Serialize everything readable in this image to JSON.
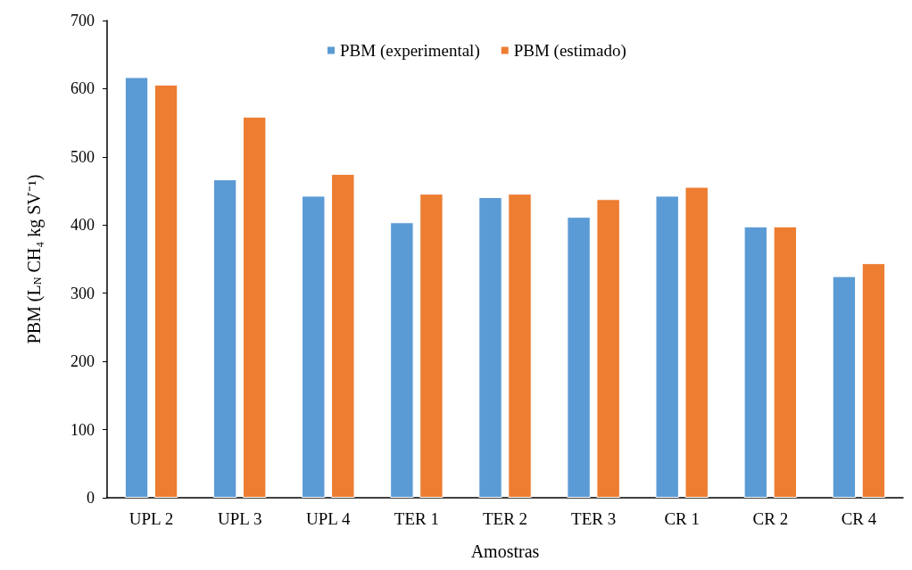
{
  "chart_data": {
    "type": "bar",
    "xlabel": "Amostras",
    "ylabel": "PBM (L$_{N}$ CH₄ kg SV⁻¹)",
    "categories": [
      "UPL 2",
      "UPL 3",
      "UPL 4",
      "TER 1",
      "TER 2",
      "TER 3",
      "CR 1",
      "CR 2",
      "CR 4"
    ],
    "series": [
      {
        "name": "PBM (experimental)",
        "color": "#5b9bd5",
        "values": [
          617,
          467,
          443,
          404,
          441,
          412,
          443,
          398,
          325
        ]
      },
      {
        "name": "PBM (estimado)",
        "color": "#ed7d31",
        "values": [
          606,
          559,
          475,
          446,
          446,
          438,
          456,
          398,
          344
        ]
      }
    ],
    "ylim": [
      0,
      700
    ],
    "yticks": [
      0,
      100,
      200,
      300,
      400,
      500,
      600,
      700
    ],
    "grid": false,
    "legend": "top"
  }
}
